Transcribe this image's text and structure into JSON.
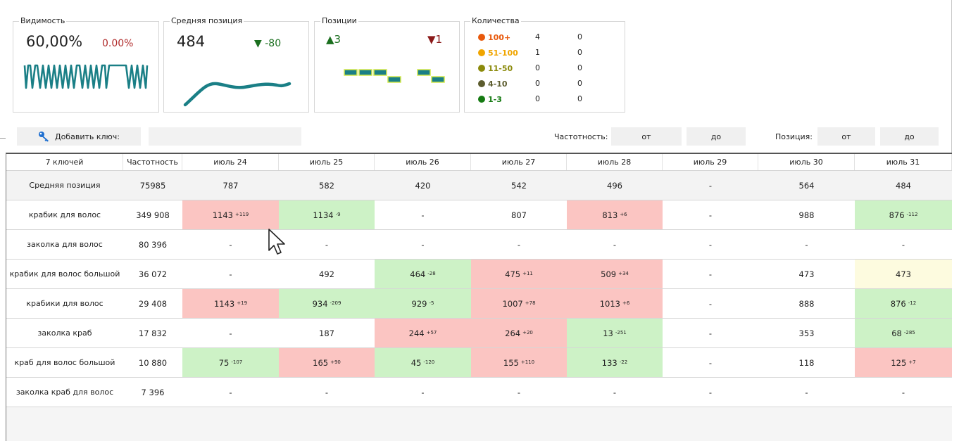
{
  "widgets": {
    "visibility": {
      "title": "Видимость",
      "value": "60,00%",
      "delta": "0.00%"
    },
    "avg_position": {
      "title": "Средняя позиция",
      "value": "484",
      "delta": "-80"
    },
    "positions": {
      "title": "Позиции",
      "up": "3",
      "down": "1"
    },
    "counts": {
      "title": "Количества",
      "rows": [
        {
          "label": "100+",
          "color": "#e8590c",
          "a": "4",
          "b": "0"
        },
        {
          "label": "51-100",
          "color": "#f0a500",
          "a": "1",
          "b": "0"
        },
        {
          "label": "11-50",
          "color": "#8b8a0b",
          "a": "0",
          "b": "0"
        },
        {
          "label": "4-10",
          "color": "#5c5c2e",
          "a": "0",
          "b": "0"
        },
        {
          "label": "1-3",
          "color": "#157a12",
          "a": "0",
          "b": "0"
        }
      ]
    }
  },
  "toolbar": {
    "add_key": "Добавить ключ:",
    "freq_label": "Частотность:",
    "from": "от",
    "to": "до",
    "pos_label": "Позиция:"
  },
  "table": {
    "headers": [
      "7 ключей",
      "Частотность",
      "июль 24",
      "июль 25",
      "июль 26",
      "июль 27",
      "июль 28",
      "июль 29",
      "июль 30",
      "июль 31"
    ],
    "rows": [
      {
        "keyword": "Средняя позиция",
        "freq": "75985",
        "cells": [
          {
            "v": "787",
            "d": "",
            "c": ""
          },
          {
            "v": "582",
            "d": "",
            "c": ""
          },
          {
            "v": "420",
            "d": "",
            "c": ""
          },
          {
            "v": "542",
            "d": "",
            "c": ""
          },
          {
            "v": "496",
            "d": "",
            "c": ""
          },
          {
            "v": "-",
            "d": "",
            "c": ""
          },
          {
            "v": "564",
            "d": "",
            "c": ""
          },
          {
            "v": "484",
            "d": "",
            "c": ""
          }
        ]
      },
      {
        "keyword": "крабик для волос",
        "freq": "349 908",
        "cells": [
          {
            "v": "1143",
            "d": "+119",
            "c": "r"
          },
          {
            "v": "1134",
            "d": "-9",
            "c": "g"
          },
          {
            "v": "-",
            "d": "",
            "c": ""
          },
          {
            "v": "807",
            "d": "",
            "c": ""
          },
          {
            "v": "813",
            "d": "+6",
            "c": "r"
          },
          {
            "v": "-",
            "d": "",
            "c": ""
          },
          {
            "v": "988",
            "d": "",
            "c": ""
          },
          {
            "v": "876",
            "d": "-112",
            "c": "g"
          }
        ]
      },
      {
        "keyword": "заколка для волос",
        "freq": "80 396",
        "cells": [
          {
            "v": "-",
            "d": "",
            "c": ""
          },
          {
            "v": "-",
            "d": "",
            "c": ""
          },
          {
            "v": "-",
            "d": "",
            "c": ""
          },
          {
            "v": "-",
            "d": "",
            "c": ""
          },
          {
            "v": "-",
            "d": "",
            "c": ""
          },
          {
            "v": "-",
            "d": "",
            "c": ""
          },
          {
            "v": "-",
            "d": "",
            "c": ""
          },
          {
            "v": "-",
            "d": "",
            "c": ""
          }
        ]
      },
      {
        "keyword": "крабик для волос большой",
        "freq": "36 072",
        "cells": [
          {
            "v": "-",
            "d": "",
            "c": ""
          },
          {
            "v": "492",
            "d": "",
            "c": ""
          },
          {
            "v": "464",
            "d": "-28",
            "c": "g"
          },
          {
            "v": "475",
            "d": "+11",
            "c": "r"
          },
          {
            "v": "509",
            "d": "+34",
            "c": "r"
          },
          {
            "v": "-",
            "d": "",
            "c": ""
          },
          {
            "v": "473",
            "d": "",
            "c": ""
          },
          {
            "v": "473",
            "d": "",
            "c": "y"
          }
        ]
      },
      {
        "keyword": "крабики для волос",
        "freq": "29 408",
        "cells": [
          {
            "v": "1143",
            "d": "+19",
            "c": "r"
          },
          {
            "v": "934",
            "d": "-209",
            "c": "g"
          },
          {
            "v": "929",
            "d": "-5",
            "c": "g"
          },
          {
            "v": "1007",
            "d": "+78",
            "c": "r"
          },
          {
            "v": "1013",
            "d": "+6",
            "c": "r"
          },
          {
            "v": "-",
            "d": "",
            "c": ""
          },
          {
            "v": "888",
            "d": "",
            "c": ""
          },
          {
            "v": "876",
            "d": "-12",
            "c": "g"
          }
        ]
      },
      {
        "keyword": "заколка краб",
        "freq": "17 832",
        "cells": [
          {
            "v": "-",
            "d": "",
            "c": ""
          },
          {
            "v": "187",
            "d": "",
            "c": ""
          },
          {
            "v": "244",
            "d": "+57",
            "c": "r"
          },
          {
            "v": "264",
            "d": "+20",
            "c": "r"
          },
          {
            "v": "13",
            "d": "-251",
            "c": "g"
          },
          {
            "v": "-",
            "d": "",
            "c": ""
          },
          {
            "v": "353",
            "d": "",
            "c": ""
          },
          {
            "v": "68",
            "d": "-285",
            "c": "g"
          }
        ]
      },
      {
        "keyword": "краб для волос большой",
        "freq": "10 880",
        "cells": [
          {
            "v": "75",
            "d": "-107",
            "c": "g"
          },
          {
            "v": "165",
            "d": "+90",
            "c": "r"
          },
          {
            "v": "45",
            "d": "-120",
            "c": "g"
          },
          {
            "v": "155",
            "d": "+110",
            "c": "r"
          },
          {
            "v": "133",
            "d": "-22",
            "c": "g"
          },
          {
            "v": "-",
            "d": "",
            "c": ""
          },
          {
            "v": "118",
            "d": "",
            "c": ""
          },
          {
            "v": "125",
            "d": "+7",
            "c": "r"
          }
        ]
      },
      {
        "keyword": "заколка краб для волос",
        "freq": "7 396",
        "cells": [
          {
            "v": "-",
            "d": "",
            "c": ""
          },
          {
            "v": "-",
            "d": "",
            "c": ""
          },
          {
            "v": "-",
            "d": "",
            "c": ""
          },
          {
            "v": "-",
            "d": "",
            "c": ""
          },
          {
            "v": "-",
            "d": "",
            "c": ""
          },
          {
            "v": "-",
            "d": "",
            "c": ""
          },
          {
            "v": "-",
            "d": "",
            "c": ""
          },
          {
            "v": "-",
            "d": "",
            "c": ""
          }
        ]
      }
    ]
  },
  "colors": {
    "sparkline": "#1a7f86",
    "green_cell": "#cdf2c6",
    "red_cell": "#fbc5c2",
    "yellow_cell": "#fdfbdf",
    "up": "#1b6f1f",
    "down": "#8b1a1a",
    "delta_red": "#b02a2a"
  }
}
